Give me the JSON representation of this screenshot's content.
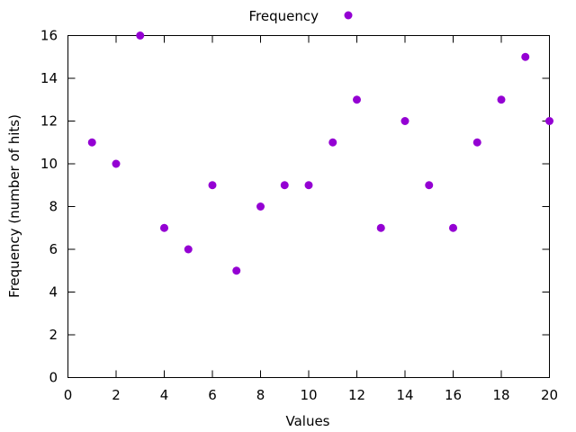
{
  "chart_data": {
    "type": "scatter",
    "title": "",
    "xlabel": "Values",
    "ylabel": "Frequency (number of hits)",
    "xlim": [
      0,
      20
    ],
    "ylim": [
      0,
      16
    ],
    "xticks": [
      0,
      2,
      4,
      6,
      8,
      10,
      12,
      14,
      16,
      18,
      20
    ],
    "yticks": [
      0,
      2,
      4,
      6,
      8,
      10,
      12,
      14,
      16
    ],
    "grid": false,
    "legend_position": "top-center, outside plot",
    "series": [
      {
        "name": "Frequency",
        "color": "#9400D3",
        "x": [
          1,
          2,
          3,
          4,
          5,
          6,
          7,
          8,
          9,
          10,
          11,
          12,
          13,
          14,
          15,
          16,
          17,
          18,
          19,
          20
        ],
        "y": [
          11,
          10,
          16,
          7,
          6,
          9,
          5,
          8,
          9,
          9,
          11,
          13,
          7,
          12,
          9,
          7,
          11,
          13,
          15,
          12
        ]
      }
    ]
  }
}
